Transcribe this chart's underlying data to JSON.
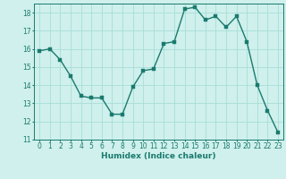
{
  "x": [
    0,
    1,
    2,
    3,
    4,
    5,
    6,
    7,
    8,
    9,
    10,
    11,
    12,
    13,
    14,
    15,
    16,
    17,
    18,
    19,
    20,
    21,
    22,
    23
  ],
  "y": [
    15.9,
    16.0,
    15.4,
    14.5,
    13.4,
    13.3,
    13.3,
    12.4,
    12.4,
    13.9,
    14.8,
    14.9,
    16.3,
    16.4,
    18.2,
    18.3,
    17.6,
    17.8,
    17.2,
    17.8,
    16.4,
    14.0,
    12.6,
    11.4
  ],
  "xlabel": "Humidex (Indice chaleur)",
  "ylim": [
    11,
    18.5
  ],
  "yticks": [
    11,
    12,
    13,
    14,
    15,
    16,
    17,
    18
  ],
  "xticks": [
    0,
    1,
    2,
    3,
    4,
    5,
    6,
    7,
    8,
    9,
    10,
    11,
    12,
    13,
    14,
    15,
    16,
    17,
    18,
    19,
    20,
    21,
    22,
    23
  ],
  "line_color": "#1a7a6e",
  "marker_color": "#1a7a6e",
  "bg_color": "#cff0ec",
  "grid_color": "#a8ddd8",
  "text_color": "#1a7a6e",
  "marker_size": 2.5,
  "line_width": 1.0,
  "tick_fontsize": 5.5,
  "xlabel_fontsize": 6.5
}
